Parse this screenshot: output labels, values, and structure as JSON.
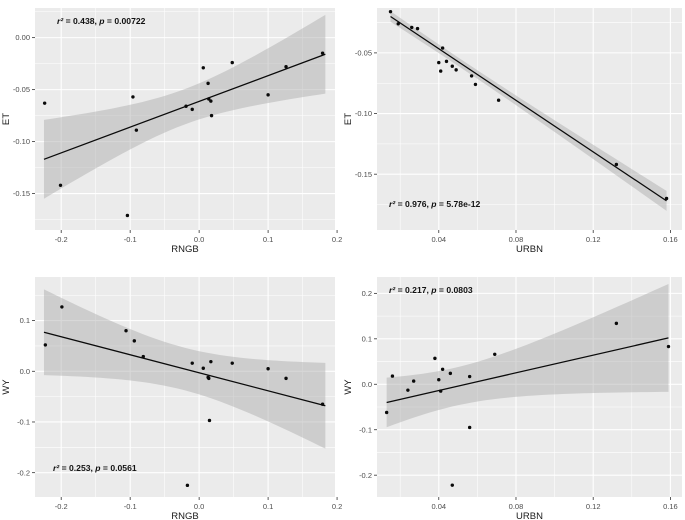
{
  "figure": {
    "background": "#ffffff",
    "panel_bg": "#ebebeb",
    "grid_major_color": "#ffffff",
    "grid_minor_color": "#ffffff",
    "band_color": "#a8a8a8",
    "band_opacity": 0.45,
    "line_color": "#0a0a0a",
    "point_color": "#0a0a0a",
    "tick_color": "#333333",
    "tick_label_color": "#4d4d4d",
    "axis_title_color": "#1a1a1a",
    "annotation_color": "#111111"
  },
  "chart_data": [
    {
      "type": "scatter",
      "name": "ET-vs-RNGB",
      "xlabel": "RNGB",
      "ylabel": "ET",
      "annotation": {
        "r2_label": "r²",
        "r2_value": "0.438",
        "p_label": "p",
        "p_value": "0.00722",
        "corner": "top-left"
      },
      "xlim": [
        -0.238,
        0.197
      ],
      "ylim": [
        -0.185,
        0.0285
      ],
      "xticks": [
        -0.2,
        -0.1,
        0.0,
        0.1,
        0.2
      ],
      "xtick_labels": [
        "-0.2",
        "-0.1",
        "0.0",
        "0.1",
        "0.2"
      ],
      "xminor": [
        -0.15,
        -0.05,
        0.05,
        0.15
      ],
      "yticks": [
        0.0,
        -0.05,
        -0.1,
        -0.15
      ],
      "ytick_labels": [
        "0.00",
        "-0.05",
        "-0.10",
        "-0.15"
      ],
      "yminor": [
        0.025,
        -0.025,
        -0.075,
        -0.125,
        -0.175
      ],
      "grid": true,
      "legend": "none",
      "points": [
        [
          -0.224,
          -0.063
        ],
        [
          -0.201,
          -0.142
        ],
        [
          -0.104,
          -0.171
        ],
        [
          -0.096,
          -0.057
        ],
        [
          -0.091,
          -0.089
        ],
        [
          -0.019,
          -0.066
        ],
        [
          -0.01,
          -0.069
        ],
        [
          0.006,
          -0.029
        ],
        [
          0.013,
          -0.044
        ],
        [
          0.014,
          -0.059
        ],
        [
          0.017,
          -0.061
        ],
        [
          0.018,
          -0.075
        ],
        [
          0.048,
          -0.024
        ],
        [
          0.1,
          -0.055
        ],
        [
          0.126,
          -0.028
        ],
        [
          0.179,
          -0.015
        ]
      ],
      "regression": {
        "x1": -0.225,
        "y1": -0.117,
        "x2": 0.183,
        "y2": -0.016
      },
      "band": {
        "center": -0.021,
        "half_min": 0.017,
        "spread": 0.166
      }
    },
    {
      "type": "scatter",
      "name": "ET-vs-URBN",
      "xlabel": "URBN",
      "ylabel": "ET",
      "annotation": {
        "r2_label": "r²",
        "r2_value": "0.976",
        "p_label": "p",
        "p_value": "5.78e-12",
        "corner": "bottom-left"
      },
      "xlim": [
        0.008,
        0.166
      ],
      "ylim": [
        -0.196,
        -0.013
      ],
      "xticks": [
        0.04,
        0.08,
        0.12,
        0.16
      ],
      "xtick_labels": [
        "0.04",
        "0.08",
        "0.12",
        "0.16"
      ],
      "xminor": [
        0.02,
        0.06,
        0.1,
        0.14
      ],
      "yticks": [
        -0.05,
        -0.1,
        -0.15
      ],
      "ytick_labels": [
        "-0.05",
        "-0.10",
        "-0.15"
      ],
      "yminor": [
        -0.025,
        -0.075,
        -0.125,
        -0.175
      ],
      "grid": true,
      "legend": "none",
      "points": [
        [
          0.015,
          -0.016
        ],
        [
          0.019,
          -0.026
        ],
        [
          0.026,
          -0.029
        ],
        [
          0.029,
          -0.03
        ],
        [
          0.04,
          -0.058
        ],
        [
          0.041,
          -0.065
        ],
        [
          0.042,
          -0.046
        ],
        [
          0.044,
          -0.057
        ],
        [
          0.047,
          -0.061
        ],
        [
          0.049,
          -0.064
        ],
        [
          0.057,
          -0.069
        ],
        [
          0.059,
          -0.076
        ],
        [
          0.071,
          -0.089
        ],
        [
          0.132,
          -0.142
        ],
        [
          0.158,
          -0.17
        ]
      ],
      "regression": {
        "x1": 0.015,
        "y1": -0.02,
        "x2": 0.158,
        "y2": -0.172
      },
      "band": {
        "center": 0.052,
        "half_min": 0.0035,
        "spread": 0.07
      }
    },
    {
      "type": "scatter",
      "name": "WY-vs-RNGB",
      "xlabel": "RNGB",
      "ylabel": "WY",
      "annotation": {
        "r2_label": "r²",
        "r2_value": "0.253",
        "p_label": "p",
        "p_value": "0.0561",
        "corner": "bottom-left"
      },
      "xlim": [
        -0.238,
        0.197
      ],
      "ylim": [
        -0.248,
        0.186
      ],
      "xticks": [
        -0.2,
        -0.1,
        0.0,
        0.1,
        0.2
      ],
      "xtick_labels": [
        "-0.2",
        "-0.1",
        "0.0",
        "0.1",
        "0.2"
      ],
      "xminor": [
        -0.15,
        -0.05,
        0.05,
        0.15
      ],
      "yticks": [
        0.1,
        0.0,
        -0.1,
        -0.2
      ],
      "ytick_labels": [
        "0.1",
        "0.0",
        "-0.1",
        "-0.2"
      ],
      "yminor": [
        0.15,
        0.05,
        -0.05,
        -0.15
      ],
      "grid": true,
      "legend": "none",
      "points": [
        [
          -0.223,
          0.052
        ],
        [
          -0.199,
          0.127
        ],
        [
          -0.106,
          0.08
        ],
        [
          -0.094,
          0.06
        ],
        [
          -0.081,
          0.029
        ],
        [
          -0.017,
          -0.225
        ],
        [
          -0.01,
          0.016
        ],
        [
          0.006,
          0.006
        ],
        [
          0.013,
          -0.012
        ],
        [
          0.014,
          -0.014
        ],
        [
          0.017,
          0.019
        ],
        [
          0.015,
          -0.097
        ],
        [
          0.048,
          0.016
        ],
        [
          0.1,
          0.005
        ],
        [
          0.126,
          -0.014
        ],
        [
          0.179,
          -0.065
        ]
      ],
      "regression": {
        "x1": -0.225,
        "y1": 0.077,
        "x2": 0.183,
        "y2": -0.068
      },
      "band": {
        "center": -0.021,
        "half_min": 0.042,
        "spread": 0.36
      }
    },
    {
      "type": "scatter",
      "name": "WY-vs-URBN",
      "xlabel": "URBN",
      "ylabel": "WY",
      "annotation": {
        "r2_label": "r²",
        "r2_value": "0.217",
        "p_label": "p",
        "p_value": "0.0803",
        "corner": "top-left"
      },
      "xlim": [
        0.008,
        0.166
      ],
      "ylim": [
        -0.248,
        0.236
      ],
      "xticks": [
        0.04,
        0.08,
        0.12,
        0.16
      ],
      "xtick_labels": [
        "0.04",
        "0.08",
        "0.12",
        "0.16"
      ],
      "xminor": [
        0.02,
        0.06,
        0.1,
        0.14
      ],
      "yticks": [
        0.2,
        0.1,
        0.0,
        -0.1,
        -0.2
      ],
      "ytick_labels": [
        "0.2",
        "0.1",
        "0.0",
        "-0.1",
        "-0.2"
      ],
      "yminor": [
        0.15,
        0.05,
        -0.05,
        -0.15
      ],
      "grid": true,
      "legend": "none",
      "points": [
        [
          0.013,
          -0.062
        ],
        [
          0.016,
          0.018
        ],
        [
          0.024,
          -0.013
        ],
        [
          0.027,
          0.007
        ],
        [
          0.038,
          0.057
        ],
        [
          0.04,
          0.01
        ],
        [
          0.041,
          -0.015
        ],
        [
          0.042,
          0.033
        ],
        [
          0.046,
          0.024
        ],
        [
          0.047,
          -0.222
        ],
        [
          0.056,
          0.017
        ],
        [
          0.056,
          -0.095
        ],
        [
          0.069,
          0.066
        ],
        [
          0.132,
          0.134
        ],
        [
          0.159,
          0.083
        ]
      ],
      "regression": {
        "x1": 0.013,
        "y1": -0.04,
        "x2": 0.159,
        "y2": 0.102
      },
      "band": {
        "center": 0.048,
        "half_min": 0.042,
        "spread": 1.0
      }
    }
  ]
}
